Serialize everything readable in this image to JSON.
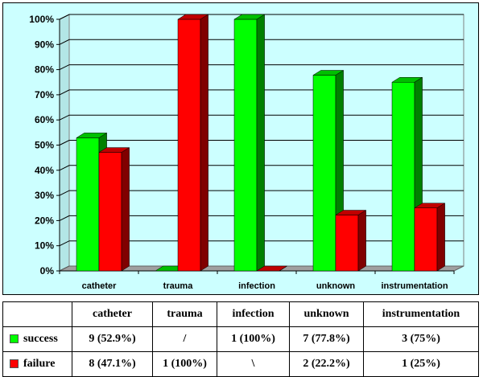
{
  "colors": {
    "success": "#00ff00",
    "failure": "#ff0000",
    "wall": "#ccffff"
  },
  "chart_data": {
    "type": "bar",
    "categories": [
      "catheter",
      "trauma",
      "infection",
      "unknown",
      "instrumentation"
    ],
    "series": [
      {
        "name": "success",
        "values": [
          52.9,
          0,
          100,
          77.8,
          75
        ]
      },
      {
        "name": "failure",
        "values": [
          47.1,
          100,
          0,
          22.2,
          25
        ]
      }
    ],
    "ylim": [
      0,
      100
    ],
    "yticks": [
      "0%",
      "10%",
      "20%",
      "30%",
      "40%",
      "50%",
      "60%",
      "70%",
      "80%",
      "90%",
      "100%"
    ],
    "grid": true,
    "legend": "table-below"
  },
  "table": {
    "headers": [
      "",
      "catheter",
      "trauma",
      "infection",
      "unknown",
      "instrumentation"
    ],
    "rows": [
      {
        "label": "success",
        "cells": [
          "9 (52.9%)",
          "/",
          "1 (100%)",
          "7 (77.8%)",
          "3 (75%)"
        ]
      },
      {
        "label": "failure",
        "cells": [
          "8 (47.1%)",
          "1 (100%)",
          "\\",
          "2 (22.2%)",
          "1 (25%)"
        ]
      }
    ]
  }
}
